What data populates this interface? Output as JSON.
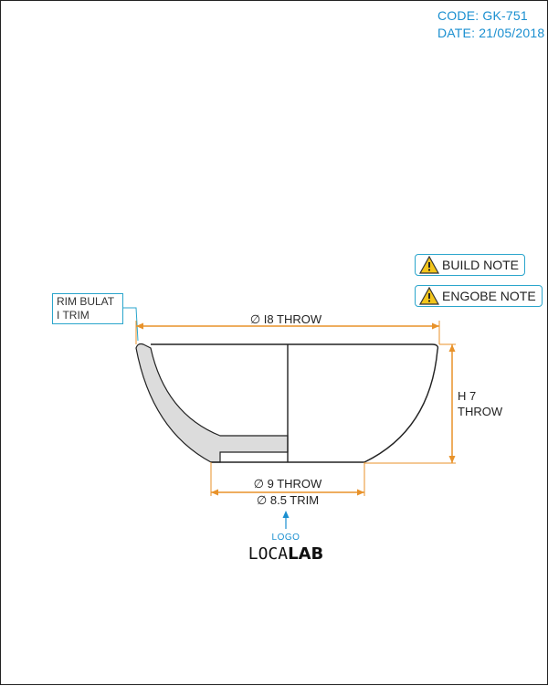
{
  "header": {
    "code_line": "CODE: GK-751",
    "date_line": "DATE: 21/05/2018"
  },
  "notes": {
    "build_note": "BUILD NOTE",
    "engobe_note": "ENGOBE NOTE"
  },
  "callouts": {
    "rim_line1": "RIM BULAT",
    "rim_line2": "I TRIM"
  },
  "dimensions": {
    "top_diameter": "∅ I8 THROW",
    "height_line1": "H 7",
    "height_line2": "THROW",
    "foot_throw": "∅ 9 THROW",
    "foot_trim": "∅ 8.5 TRIM"
  },
  "logo": {
    "caption": "LOGO",
    "brand_light": "LOCA",
    "brand_bold": "LAB"
  },
  "colors": {
    "accent_blue": "#1a8fd0",
    "callout_border": "#2aa5cc",
    "dimension_orange": "#e8922a",
    "section_fill": "#dcdcdc",
    "outline": "#222222"
  },
  "icons": {
    "warning": "warning-triangle-icon",
    "arrow": "arrow-up-icon"
  }
}
